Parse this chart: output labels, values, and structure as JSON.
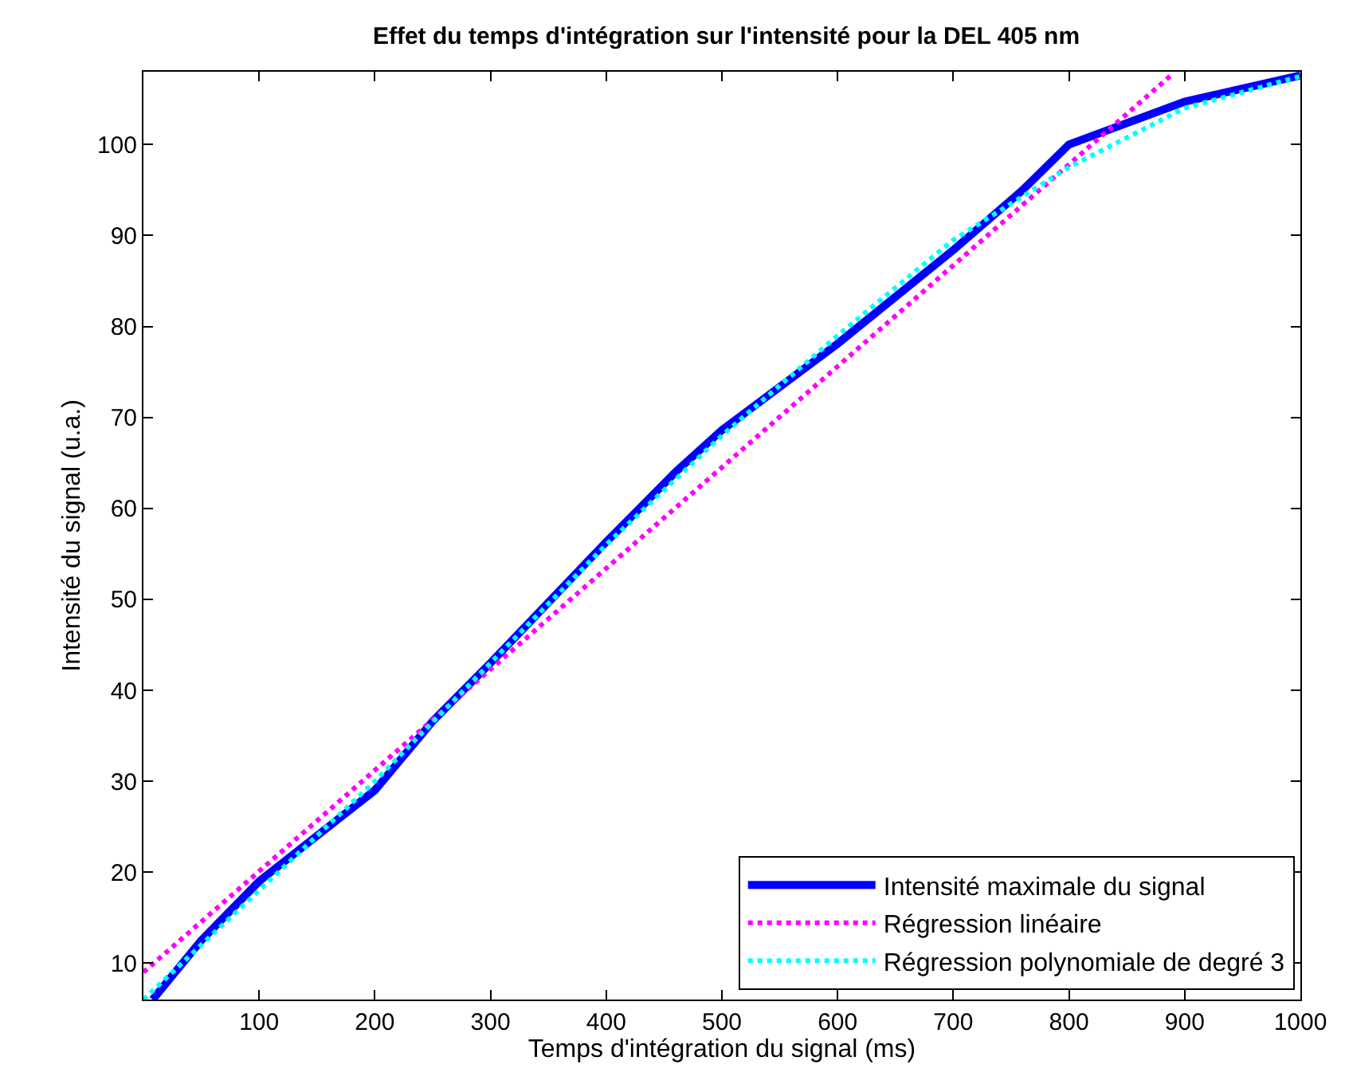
{
  "chart_data": {
    "type": "line",
    "title": "Effet du temps d'intégration sur l'intensité pour la DEL 405 nm",
    "xlabel": "Temps d'intégration du signal (ms)",
    "ylabel": "Intensité du signal (u.a.)",
    "xlim": [
      0,
      1000
    ],
    "ylim": [
      6,
      108
    ],
    "xticks": [
      100,
      200,
      300,
      400,
      500,
      600,
      700,
      800,
      900,
      1000
    ],
    "yticks": [
      10,
      20,
      30,
      40,
      50,
      60,
      70,
      80,
      90,
      100
    ],
    "legend": "bottom right",
    "marker": "none",
    "series": [
      {
        "name": "Intensité maximale du signal",
        "color": "#0000ff",
        "line_style": "solid",
        "x": [
          8,
          50,
          100,
          200,
          250,
          300,
          400,
          460,
          500,
          600,
          700,
          760,
          800,
          900,
          1000
        ],
        "values": [
          6,
          12.5,
          19,
          29,
          36.6,
          43,
          56.3,
          64,
          68.6,
          78.1,
          88.4,
          95,
          100,
          104.7,
          107.6
        ]
      },
      {
        "name": "Régression linéaire",
        "color": "#ff00ff",
        "line_style": "dotted",
        "x": [
          0,
          890
        ],
        "values": [
          9,
          107.8
        ]
      },
      {
        "name": "Régression polynomiale de degré 3",
        "color": "#00ffff",
        "line_style": "dotted",
        "x": [
          0,
          100,
          200,
          300,
          400,
          500,
          600,
          700,
          800,
          900,
          1000
        ],
        "values": [
          6,
          18,
          30,
          43,
          56,
          68,
          79,
          89.5,
          97.5,
          104,
          107.5
        ]
      }
    ]
  }
}
